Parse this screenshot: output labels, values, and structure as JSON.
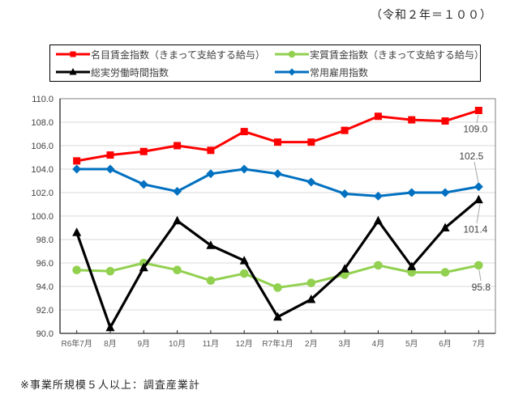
{
  "title_note": "（令和２年＝１００）",
  "footer_note": "※事業所規模５人以上：調査産業計",
  "colors": {
    "nominal_wage": "#FF0000",
    "real_wage": "#92D050",
    "total_hours": "#000000",
    "employment": "#0070C0",
    "gridline": "#D9D9D9",
    "axis": "#262626",
    "frame": "#7F7F7F",
    "tick_label": "#595959",
    "data_label": "#404040",
    "leader_line": "#A6A6A6"
  },
  "chart_data": {
    "type": "line",
    "title": "",
    "categories": [
      "R6年7月",
      "8月",
      "9月",
      "10月",
      "11月",
      "12月",
      "R7年1月",
      "2月",
      "3月",
      "4月",
      "5月",
      "6月",
      "7月"
    ],
    "series": [
      {
        "name": "名目賃金指数（きまって支給する給与）",
        "color": "#FF0000",
        "marker": "square",
        "values": [
          104.7,
          105.2,
          105.5,
          106.0,
          105.6,
          107.2,
          106.3,
          106.3,
          107.3,
          108.5,
          108.2,
          108.1,
          109.0
        ],
        "end_label": "109.0"
      },
      {
        "name": "実質賃金指数（きまって支給する給与）",
        "color": "#92D050",
        "marker": "circle",
        "values": [
          95.4,
          95.3,
          96.0,
          95.4,
          94.5,
          95.1,
          93.9,
          94.3,
          95.0,
          95.8,
          95.2,
          95.2,
          95.8
        ],
        "end_label": "95.8"
      },
      {
        "name": "総実労働時間指数",
        "color": "#000000",
        "marker": "triangle",
        "values": [
          98.6,
          90.5,
          95.6,
          99.6,
          97.5,
          96.2,
          91.4,
          92.9,
          95.5,
          99.6,
          95.7,
          99.0,
          101.4
        ],
        "end_label": "101.4"
      },
      {
        "name": "常用雇用指数",
        "color": "#0070C0",
        "marker": "diamond",
        "values": [
          104.0,
          104.0,
          102.7,
          102.1,
          103.6,
          104.0,
          103.6,
          102.9,
          101.9,
          101.7,
          102.0,
          102.0,
          102.5
        ],
        "end_label": "102.5"
      }
    ],
    "ylim": [
      90.0,
      110.0
    ],
    "ytick_step": 2.0,
    "ytick_decimals": 1,
    "grid": true,
    "legend_position": "top"
  }
}
